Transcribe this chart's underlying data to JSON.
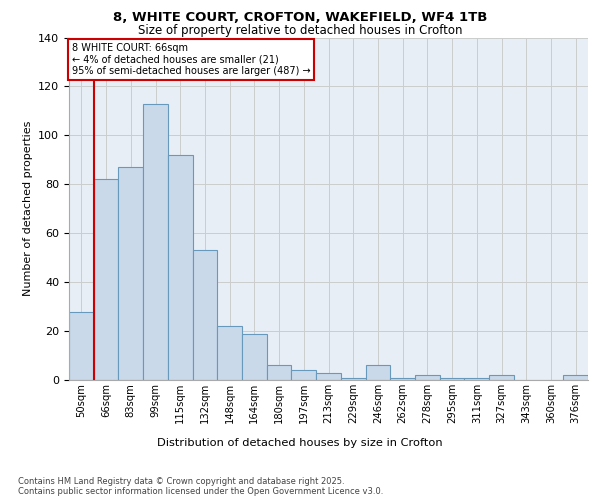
{
  "title_line1": "8, WHITE COURT, CROFTON, WAKEFIELD, WF4 1TB",
  "title_line2": "Size of property relative to detached houses in Crofton",
  "xlabel": "Distribution of detached houses by size in Crofton",
  "ylabel": "Number of detached properties",
  "categories": [
    "50sqm",
    "66sqm",
    "83sqm",
    "99sqm",
    "115sqm",
    "132sqm",
    "148sqm",
    "164sqm",
    "180sqm",
    "197sqm",
    "213sqm",
    "229sqm",
    "246sqm",
    "262sqm",
    "278sqm",
    "295sqm",
    "311sqm",
    "327sqm",
    "343sqm",
    "360sqm",
    "376sqm"
  ],
  "bar_values": [
    28,
    82,
    87,
    113,
    92,
    53,
    22,
    19,
    6,
    4,
    3,
    1,
    6,
    1,
    2,
    1,
    1,
    2,
    0,
    0,
    2
  ],
  "bar_color": "#c9d9ea",
  "bar_edge_color": "#6699bb",
  "vline_color": "#cc0000",
  "vline_index": 1,
  "annotation_text": "8 WHITE COURT: 66sqm\n← 4% of detached houses are smaller (21)\n95% of semi-detached houses are larger (487) →",
  "annotation_box_edge_color": "#cc0000",
  "ylim": [
    0,
    140
  ],
  "yticks": [
    0,
    20,
    40,
    60,
    80,
    100,
    120,
    140
  ],
  "grid_color": "#cccccc",
  "plot_bg_color": "#e8eef6",
  "footer_text": "Contains HM Land Registry data © Crown copyright and database right 2025.\nContains public sector information licensed under the Open Government Licence v3.0."
}
